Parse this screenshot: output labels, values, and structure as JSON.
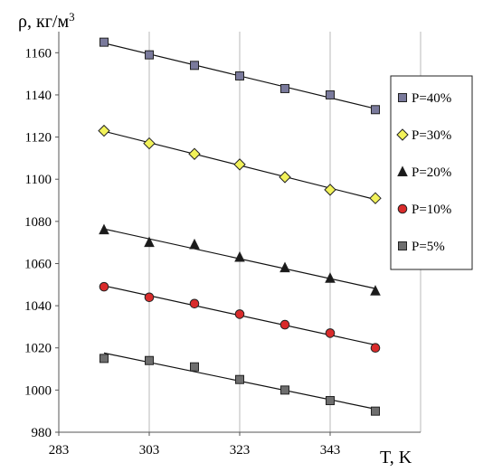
{
  "chart_data": {
    "type": "scatter",
    "title": "",
    "ylabel": "ρ, кг/м",
    "ylabel_superscript": "3",
    "xlabel": "T, K",
    "xlim": [
      283,
      363
    ],
    "ylim": [
      980,
      1170
    ],
    "x_ticks": [
      283,
      303,
      323,
      343
    ],
    "y_ticks": [
      980,
      1000,
      1020,
      1040,
      1060,
      1080,
      1100,
      1120,
      1140,
      1160
    ],
    "grid": "vertical lines at x ticks",
    "legend_position": "right",
    "series": [
      {
        "name": "P=40%",
        "marker": "square",
        "color": "#7a7a9c",
        "trend": "linear",
        "points": [
          [
            293,
            1165
          ],
          [
            303,
            1159
          ],
          [
            313,
            1154
          ],
          [
            323,
            1149
          ],
          [
            333,
            1143
          ],
          [
            343,
            1140
          ],
          [
            353,
            1133
          ]
        ]
      },
      {
        "name": "P=30%",
        "marker": "diamond",
        "color": "#f2f25a",
        "trend": "linear",
        "points": [
          [
            293,
            1123
          ],
          [
            303,
            1117
          ],
          [
            313,
            1112
          ],
          [
            323,
            1107
          ],
          [
            333,
            1101
          ],
          [
            343,
            1095
          ],
          [
            353,
            1091
          ]
        ]
      },
      {
        "name": "P=20%",
        "marker": "triangle",
        "color": "#1a1a1a",
        "trend": "linear",
        "points": [
          [
            293,
            1076
          ],
          [
            303,
            1070
          ],
          [
            313,
            1069
          ],
          [
            323,
            1063
          ],
          [
            333,
            1058
          ],
          [
            343,
            1053
          ],
          [
            353,
            1047
          ]
        ]
      },
      {
        "name": "P=10%",
        "marker": "circle",
        "color": "#d92b2b",
        "trend": "linear",
        "points": [
          [
            293,
            1049
          ],
          [
            303,
            1044
          ],
          [
            313,
            1041
          ],
          [
            323,
            1036
          ],
          [
            333,
            1031
          ],
          [
            343,
            1027
          ],
          [
            353,
            1020
          ]
        ]
      },
      {
        "name": "P=5%",
        "marker": "square",
        "color": "#6e6e6e",
        "trend": "linear",
        "points": [
          [
            293,
            1015
          ],
          [
            303,
            1014
          ],
          [
            313,
            1011
          ],
          [
            323,
            1005
          ],
          [
            333,
            1000
          ],
          [
            343,
            995
          ],
          [
            353,
            990
          ]
        ]
      }
    ]
  }
}
